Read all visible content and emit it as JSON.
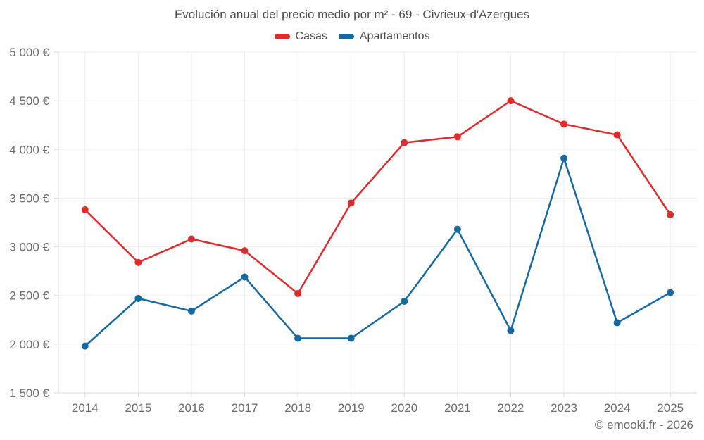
{
  "page": {
    "footer": "© emooki.fr - 2026"
  },
  "chart_data": {
    "type": "line",
    "title": "Evolución anual del precio medio por m² - 69 - Civrieux-d'Azergues",
    "categories": [
      "2014",
      "2015",
      "2016",
      "2017",
      "2018",
      "2019",
      "2020",
      "2021",
      "2022",
      "2023",
      "2024",
      "2025"
    ],
    "series": [
      {
        "name": "Casas",
        "color": "#dd2c2c",
        "values": [
          3380,
          2840,
          3080,
          2960,
          2520,
          3450,
          4070,
          4130,
          4500,
          4260,
          4150,
          3330
        ]
      },
      {
        "name": "Apartamentos",
        "color": "#15699f",
        "values": [
          1980,
          2470,
          2340,
          2690,
          2060,
          2060,
          2440,
          3180,
          2140,
          3910,
          2220,
          2530
        ]
      }
    ],
    "ylim": [
      1500,
      5000
    ],
    "ytick_step": 500,
    "ytick_suffix": " €",
    "grid": true,
    "legend_position": "top",
    "colors": {
      "gridline": "#ededed",
      "axis_line": "#d9d9d9",
      "tick_label": "#6b6b6b",
      "title_text": "#4d4d4d"
    }
  }
}
